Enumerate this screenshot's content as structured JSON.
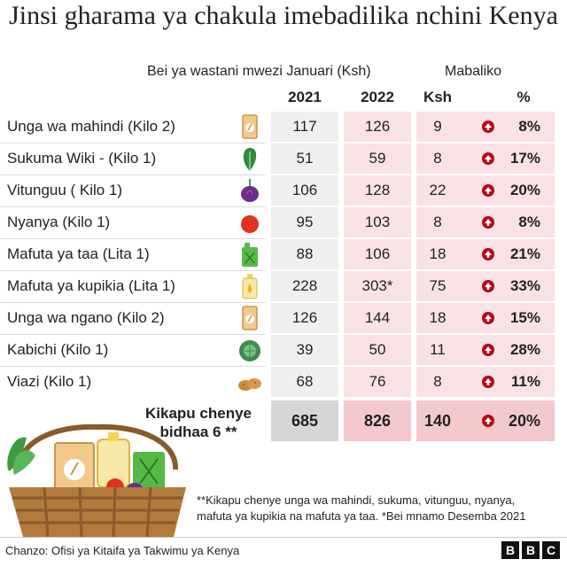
{
  "title": "Jinsi gharama ya chakula imebadilika nchini Kenya",
  "headers": {
    "avg_price": "Bei ya wastani mwezi Januari (Ksh)",
    "change": "Mabaliko",
    "year1": "2021",
    "year2": "2022",
    "ksh": "Ksh",
    "pct": "%"
  },
  "rows": [
    {
      "label": "Unga wa mahindi (Kilo 2)",
      "icon": "flour-pack-icon",
      "v2021": "117",
      "v2022": "126",
      "ksh": "9",
      "pct": "8%"
    },
    {
      "label": "Sukuma Wiki - (Kilo 1)",
      "icon": "kale-leaf-icon",
      "v2021": "51",
      "v2022": "59",
      "ksh": "8",
      "pct": "17%"
    },
    {
      "label": "Vitunguu ( Kilo 1)",
      "icon": "onion-icon",
      "v2021": "106",
      "v2022": "128",
      "ksh": "22",
      "pct": "20%"
    },
    {
      "label": "Nyanya (Kilo 1)",
      "icon": "tomato-icon",
      "v2021": "95",
      "v2022": "103",
      "ksh": "8",
      "pct": "8%"
    },
    {
      "label": "Mafuta ya taa (Lita 1)",
      "icon": "jerrycan-icon",
      "v2021": "88",
      "v2022": "106",
      "ksh": "18",
      "pct": "21%"
    },
    {
      "label": "Mafuta ya kupikia (Lita 1)",
      "icon": "oil-bottle-icon",
      "v2021": "228",
      "v2022": "303*",
      "ksh": "75",
      "pct": "33%"
    },
    {
      "label": "Unga wa ngano (Kilo 2)",
      "icon": "flour-pack-icon",
      "v2021": "126",
      "v2022": "144",
      "ksh": "18",
      "pct": "15%"
    },
    {
      "label": "Kabichi (Kilo 1)",
      "icon": "cabbage-icon",
      "v2021": "39",
      "v2022": "50",
      "ksh": "11",
      "pct": "28%"
    },
    {
      "label": "Viazi (Kilo 1)",
      "icon": "potatoes-icon",
      "v2021": "68",
      "v2022": "76",
      "ksh": "8",
      "pct": "11%"
    }
  ],
  "total": {
    "label_line1": "Kikapu chenye",
    "label_line2": "bidhaa 6 **",
    "v2021": "685",
    "v2022": "826",
    "ksh": "140",
    "pct": "20%"
  },
  "note_line1": "**Kikapu chenye unga wa mahindi, sukuma, vitunguu, nyanya,",
  "note_line2": "mafuta ya kupikia na mafuta ya taa. *Bei mnamo Desemba 2021",
  "source": "Chanzo: Ofisi ya Kitaifa ya Takwimu ya Kenya",
  "logo": [
    "B",
    "B",
    "C"
  ],
  "colors": {
    "increase_arrow": "#b30a16",
    "price_2022_bg": "#f8e2e4",
    "price_2021_bg": "#efefef"
  }
}
